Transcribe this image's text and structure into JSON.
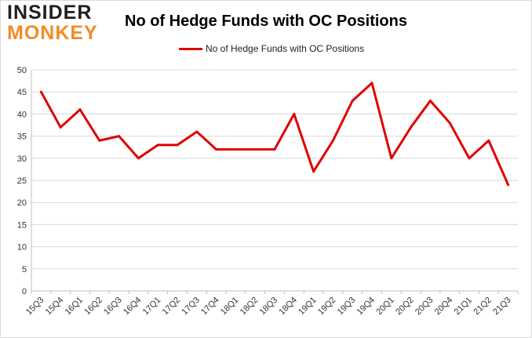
{
  "logo": {
    "top": "INSIDER",
    "bottom": "MONKEY",
    "top_color": "#1f1f1f",
    "bottom_color": "#f28c28"
  },
  "chart_data": {
    "type": "line",
    "title": "No of Hedge Funds with OC Positions",
    "xlabel": "",
    "ylabel": "",
    "categories": [
      "15Q3",
      "15Q4",
      "16Q1",
      "16Q2",
      "16Q3",
      "16Q4",
      "17Q1",
      "17Q2",
      "17Q3",
      "17Q4",
      "18Q1",
      "18Q2",
      "18Q3",
      "18Q4",
      "19Q1",
      "19Q2",
      "19Q3",
      "19Q4",
      "20Q1",
      "20Q2",
      "20Q3",
      "20Q4",
      "21Q1",
      "21Q2",
      "21Q3"
    ],
    "series": [
      {
        "name": "No of Hedge Funds with OC Positions",
        "color": "#e00000",
        "values": [
          45,
          37,
          41,
          34,
          35,
          30,
          33,
          33,
          36,
          32,
          32,
          32,
          32,
          40,
          27,
          34,
          43,
          47,
          30,
          37,
          43,
          38,
          30,
          34,
          24
        ]
      }
    ],
    "ylim": [
      0,
      50
    ],
    "yticks": [
      0,
      5,
      10,
      15,
      20,
      25,
      30,
      35,
      40,
      45,
      50
    ],
    "grid": true,
    "legend_position": "top-center"
  }
}
